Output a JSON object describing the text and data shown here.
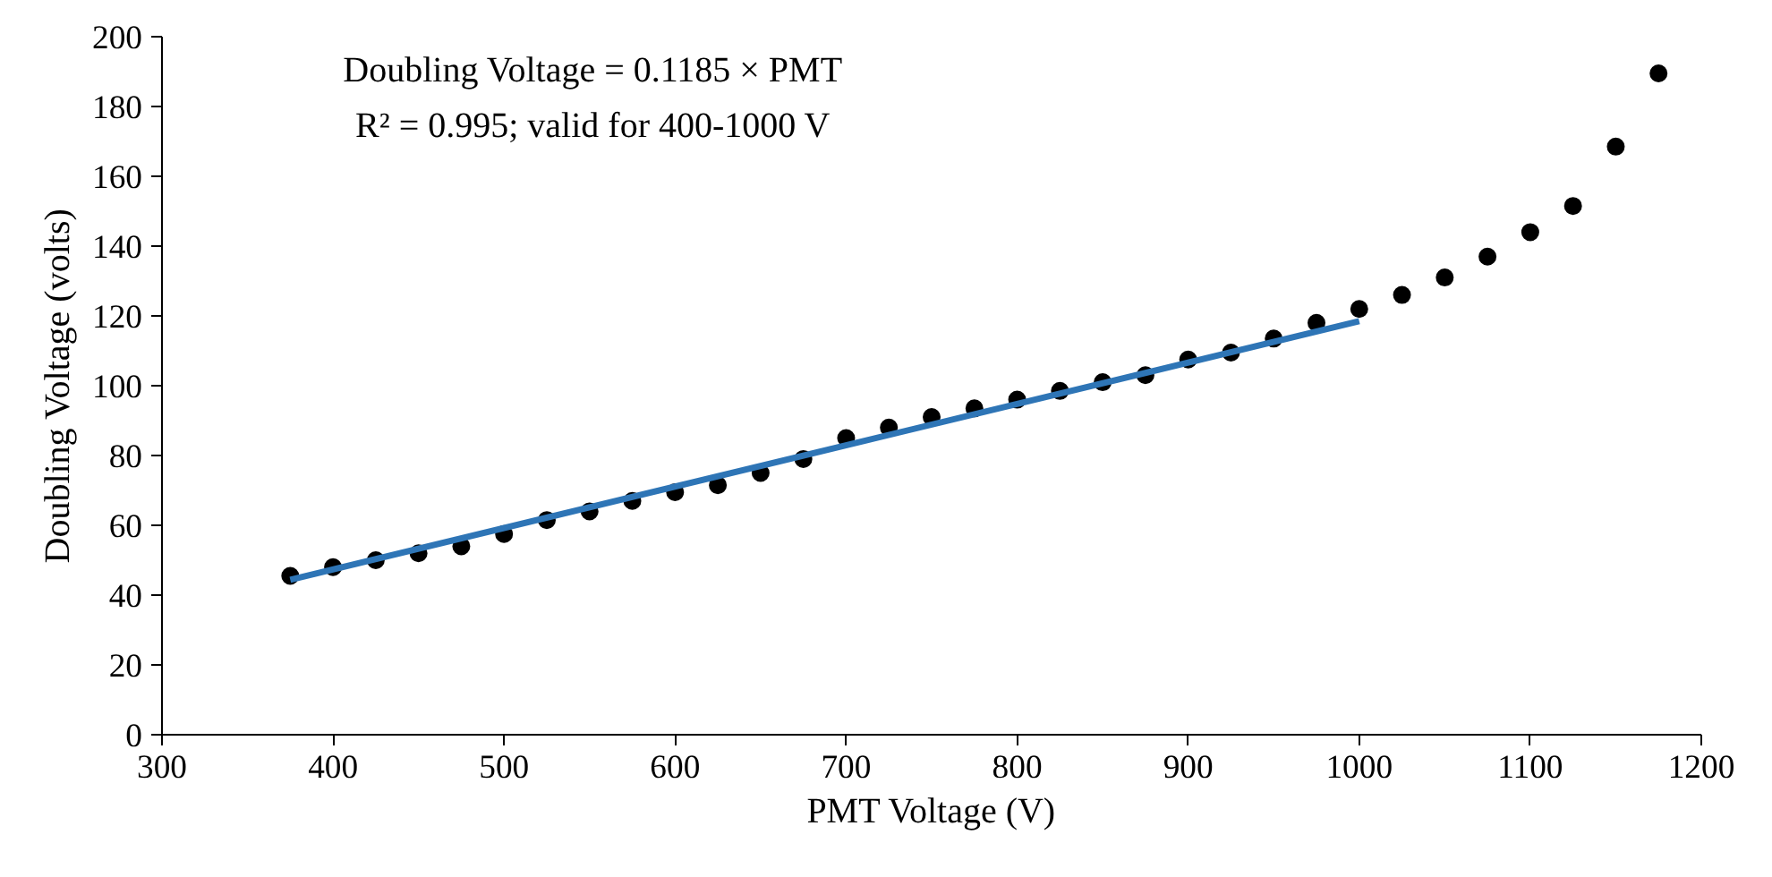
{
  "chart_data": {
    "type": "scatter",
    "xlabel": "PMT Voltage (V)",
    "ylabel": "Doubling Voltage (volts)",
    "annotations": [
      "Doubling Voltage = 0.1185 × PMT",
      "R² = 0.995; valid for 400-1000 V"
    ],
    "xlim": [
      300,
      1200
    ],
    "xticks": [
      300,
      400,
      500,
      600,
      700,
      800,
      900,
      1000,
      1100,
      1200
    ],
    "ylim": [
      0,
      200
    ],
    "yticks": [
      0,
      20,
      40,
      60,
      80,
      100,
      120,
      140,
      160,
      180,
      200
    ],
    "grid": false,
    "series": [
      {
        "marker": "circle",
        "color": "#000000",
        "x": [
          375,
          400,
          425,
          450,
          475,
          500,
          525,
          550,
          575,
          600,
          625,
          650,
          675,
          700,
          725,
          750,
          775,
          800,
          825,
          850,
          875,
          900,
          925,
          950,
          975,
          1000,
          1025,
          1050,
          1075,
          1100,
          1125,
          1150,
          1175
        ],
        "values": [
          45.5,
          48,
          50,
          52,
          54,
          57.5,
          61.5,
          64,
          67,
          69.5,
          71.5,
          75,
          79,
          85,
          88,
          91,
          93.5,
          96,
          98.5,
          101,
          103,
          107.5,
          109.5,
          113.5,
          118,
          122,
          126,
          131,
          137,
          144,
          151.5,
          168.5,
          189.5
        ]
      },
      {
        "type": "line",
        "color": "#2e75b6",
        "line_style": "solid",
        "x": [
          375,
          1000
        ],
        "values": [
          44.4,
          118.5
        ]
      }
    ]
  }
}
